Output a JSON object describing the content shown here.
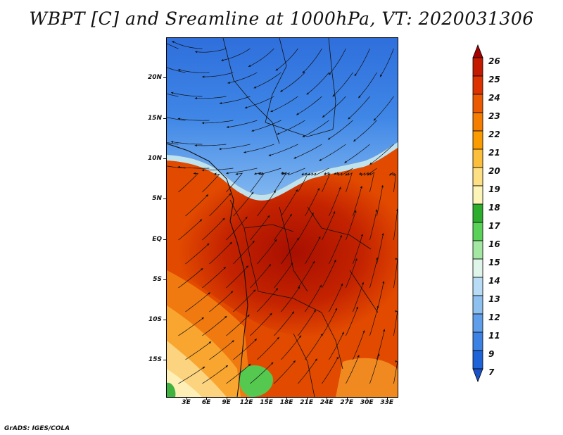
{
  "title": "WBPT [C] and Sreamline at 1000hPa, VT: 2020031306",
  "credit": "GrADS: IGES/COLA",
  "map": {
    "lat_labels": [
      {
        "text": "20N",
        "lat": 20
      },
      {
        "text": "15N",
        "lat": 15
      },
      {
        "text": "10N",
        "lat": 10
      },
      {
        "text": "5N",
        "lat": 5
      },
      {
        "text": "EQ",
        "lat": 0
      },
      {
        "text": "5S",
        "lat": -5
      },
      {
        "text": "10S",
        "lat": -10
      },
      {
        "text": "15S",
        "lat": -15
      }
    ],
    "lon_labels": [
      {
        "text": "3E",
        "lon": 3
      },
      {
        "text": "6E",
        "lon": 6
      },
      {
        "text": "9E",
        "lon": 9
      },
      {
        "text": "12E",
        "lon": 12
      },
      {
        "text": "15E",
        "lon": 15
      },
      {
        "text": "18E",
        "lon": 18
      },
      {
        "text": "21E",
        "lon": 21
      },
      {
        "text": "24E",
        "lon": 24
      },
      {
        "text": "27E",
        "lon": 27
      },
      {
        "text": "30E",
        "lon": 30
      },
      {
        "text": "33E",
        "lon": 33
      }
    ],
    "lon_range": [
      0,
      34.5
    ],
    "lat_range": [
      -19.5,
      25
    ]
  },
  "colorbar": {
    "labels": [
      "26",
      "25",
      "24",
      "23",
      "22",
      "21",
      "20",
      "19",
      "18",
      "17",
      "16",
      "15",
      "14",
      "13",
      "12",
      "11",
      "9",
      "7"
    ],
    "colors": [
      "#a50000",
      "#c41b00",
      "#dc3300",
      "#eb5a00",
      "#f57d00",
      "#fa9b00",
      "#fcbf3c",
      "#fde083",
      "#fdf5b8",
      "#2cae2c",
      "#5ad25a",
      "#a3e7a3",
      "#dff5ea",
      "#b8dcf5",
      "#8ec0f0",
      "#5e9eea",
      "#3b82e4",
      "#1e64d8",
      "#1a50c8"
    ]
  },
  "colors": {
    "hot": "#b51d00",
    "warm": "#e04400",
    "north_blue": "#3f86e6"
  }
}
